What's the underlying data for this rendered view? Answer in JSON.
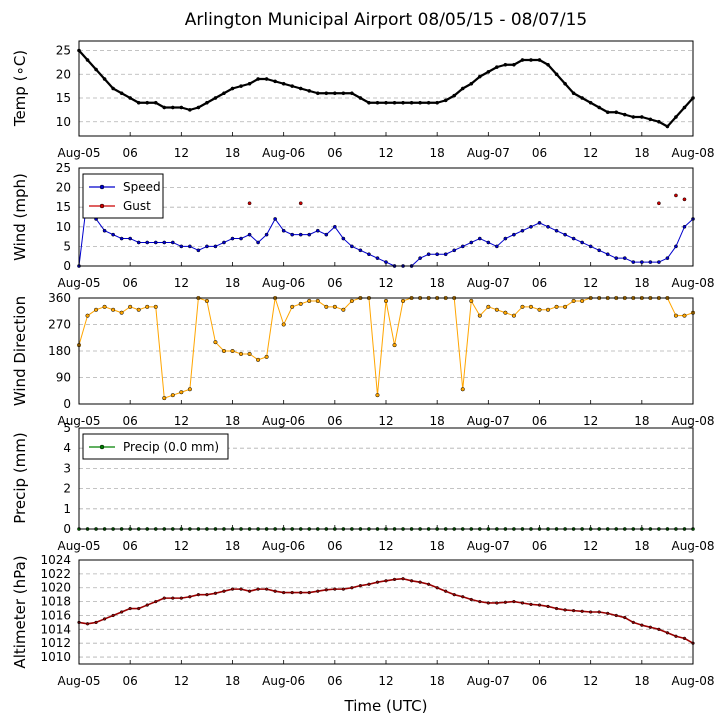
{
  "title": "Arlington Municipal Airport 08/05/15 - 08/07/15",
  "xlabel": "Time (UTC)",
  "x_ticks": [
    "Aug-05",
    "06",
    "12",
    "18",
    "Aug-06",
    "06",
    "12",
    "18",
    "Aug-07",
    "06",
    "12",
    "18",
    "Aug-08"
  ],
  "colors": {
    "temp": "#000000",
    "speed": "#0000cc",
    "gust": "#cc0000",
    "dir": "#ffa500",
    "precip": "#008000",
    "alt": "#990000",
    "grid": "#b0b0b0"
  },
  "chart_data": [
    {
      "type": "line",
      "id": "temp",
      "ylabel": "Temp (∘C)",
      "ylim": [
        7,
        27
      ],
      "yticks": [
        "10",
        "15",
        "20",
        "25"
      ],
      "x_unit": "hours since Aug-05 00 UTC",
      "x": [
        0,
        1,
        2,
        3,
        4,
        5,
        6,
        7,
        8,
        9,
        10,
        11,
        12,
        13,
        14,
        15,
        16,
        17,
        18,
        19,
        20,
        21,
        22,
        23,
        24,
        25,
        26,
        27,
        28,
        29,
        30,
        31,
        32,
        33,
        34,
        35,
        36,
        37,
        38,
        39,
        40,
        41,
        42,
        43,
        44,
        45,
        46,
        47,
        48,
        49,
        50,
        51,
        52,
        53,
        54,
        55,
        56,
        57,
        58,
        59,
        60,
        61,
        62,
        63,
        64,
        65,
        66,
        67,
        68,
        69,
        70,
        71,
        72
      ],
      "series": [
        {
          "name": "Temp",
          "values": [
            25,
            23,
            21,
            19,
            17,
            16,
            15,
            14,
            14,
            14,
            13,
            13,
            13,
            12.5,
            13,
            14,
            15,
            16,
            17,
            17.5,
            18,
            19,
            19,
            18.5,
            18,
            17.5,
            17,
            16.5,
            16,
            16,
            16,
            16,
            16,
            15,
            14,
            14,
            14,
            14,
            14,
            14,
            14,
            14,
            14,
            14.5,
            15.5,
            17,
            18,
            19.5,
            20.5,
            21.5,
            22,
            22,
            23,
            23,
            23,
            22,
            20,
            18,
            16,
            15,
            14,
            13,
            12,
            12,
            11.5,
            11,
            11,
            10.5,
            10,
            9,
            11,
            13,
            15
          ]
        }
      ]
    },
    {
      "type": "line",
      "id": "wind",
      "ylabel": "Wind (mph)",
      "ylim": [
        0,
        25
      ],
      "yticks": [
        "0",
        "5",
        "10",
        "15",
        "20",
        "25"
      ],
      "legend": [
        "Speed",
        "Gust"
      ],
      "series": [
        {
          "name": "Speed",
          "values": [
            0,
            18,
            12,
            9,
            8,
            7,
            7,
            6,
            6,
            6,
            6,
            6,
            5,
            5,
            4,
            5,
            5,
            6,
            7,
            7,
            8,
            6,
            8,
            12,
            9,
            8,
            8,
            8,
            9,
            8,
            10,
            7,
            5,
            4,
            3,
            2,
            1,
            0,
            0,
            0,
            2,
            3,
            3,
            3,
            4,
            5,
            6,
            7,
            6,
            5,
            7,
            8,
            9,
            10,
            11,
            10,
            9,
            8,
            7,
            6,
            5,
            4,
            3,
            2,
            2,
            1,
            1,
            1,
            1,
            2,
            5,
            10,
            12
          ]
        },
        {
          "name": "Gust",
          "values": [
            null,
            null,
            null,
            null,
            null,
            null,
            null,
            null,
            null,
            null,
            null,
            null,
            null,
            null,
            null,
            null,
            null,
            null,
            null,
            null,
            16,
            null,
            null,
            null,
            null,
            null,
            16,
            null,
            null,
            null,
            null,
            null,
            null,
            null,
            null,
            null,
            null,
            null,
            null,
            null,
            null,
            null,
            null,
            null,
            null,
            null,
            null,
            null,
            null,
            null,
            null,
            null,
            null,
            null,
            null,
            null,
            null,
            null,
            null,
            null,
            null,
            null,
            null,
            null,
            null,
            null,
            null,
            null,
            16,
            null,
            18,
            17,
            null
          ]
        }
      ]
    },
    {
      "type": "scatter",
      "id": "dir",
      "ylabel": "Wind Direction",
      "ylim": [
        0,
        360
      ],
      "yticks": [
        "0",
        "90",
        "180",
        "270",
        "360"
      ],
      "series": [
        {
          "name": "Direction",
          "values": [
            200,
            300,
            320,
            330,
            320,
            310,
            330,
            320,
            330,
            330,
            20,
            30,
            40,
            50,
            360,
            350,
            210,
            180,
            180,
            170,
            170,
            150,
            160,
            360,
            270,
            330,
            340,
            350,
            350,
            330,
            330,
            320,
            350,
            360,
            360,
            30,
            350,
            200,
            350,
            360,
            360,
            360,
            360,
            360,
            360,
            50,
            350,
            300,
            330,
            320,
            310,
            300,
            330,
            330,
            320,
            320,
            330,
            330,
            350,
            350,
            360,
            360,
            360,
            360,
            360,
            360,
            360,
            360,
            360,
            360,
            300,
            300,
            310
          ]
        }
      ]
    },
    {
      "type": "line",
      "id": "precip",
      "ylabel": "Precip (mm)",
      "ylim": [
        0,
        5
      ],
      "yticks": [
        "0",
        "1",
        "2",
        "3",
        "4",
        "5"
      ],
      "legend": [
        "Precip (0.0 mm)"
      ],
      "series": [
        {
          "name": "Precip",
          "values": [
            0,
            0,
            0,
            0,
            0,
            0,
            0,
            0,
            0,
            0,
            0,
            0,
            0,
            0,
            0,
            0,
            0,
            0,
            0,
            0,
            0,
            0,
            0,
            0,
            0,
            0,
            0,
            0,
            0,
            0,
            0,
            0,
            0,
            0,
            0,
            0,
            0,
            0,
            0,
            0,
            0,
            0,
            0,
            0,
            0,
            0,
            0,
            0,
            0,
            0,
            0,
            0,
            0,
            0,
            0,
            0,
            0,
            0,
            0,
            0,
            0,
            0,
            0,
            0,
            0,
            0,
            0,
            0,
            0,
            0,
            0,
            0,
            0
          ]
        }
      ]
    },
    {
      "type": "line",
      "id": "alt",
      "ylabel": "Altimeter (hPa)",
      "ylim": [
        1009,
        1024
      ],
      "yticks": [
        "1010",
        "1012",
        "1014",
        "1016",
        "1018",
        "1020",
        "1022",
        "1024"
      ],
      "series": [
        {
          "name": "Altimeter",
          "values": [
            1015,
            1014.8,
            1015,
            1015.5,
            1016,
            1016.5,
            1017,
            1017,
            1017.5,
            1018,
            1018.5,
            1018.5,
            1018.5,
            1018.7,
            1019,
            1019,
            1019.2,
            1019.5,
            1019.8,
            1019.8,
            1019.5,
            1019.8,
            1019.8,
            1019.5,
            1019.3,
            1019.3,
            1019.3,
            1019.3,
            1019.5,
            1019.7,
            1019.8,
            1019.8,
            1020,
            1020.3,
            1020.5,
            1020.8,
            1021,
            1021.2,
            1021.3,
            1021,
            1020.8,
            1020.5,
            1020,
            1019.5,
            1019,
            1018.7,
            1018.3,
            1018,
            1017.8,
            1017.8,
            1017.9,
            1018,
            1017.8,
            1017.6,
            1017.5,
            1017.3,
            1017,
            1016.8,
            1016.7,
            1016.6,
            1016.5,
            1016.5,
            1016.3,
            1016,
            1015.7,
            1015,
            1014.6,
            1014.3,
            1014,
            1013.5,
            1013,
            1012.7,
            1012
          ]
        }
      ]
    }
  ]
}
